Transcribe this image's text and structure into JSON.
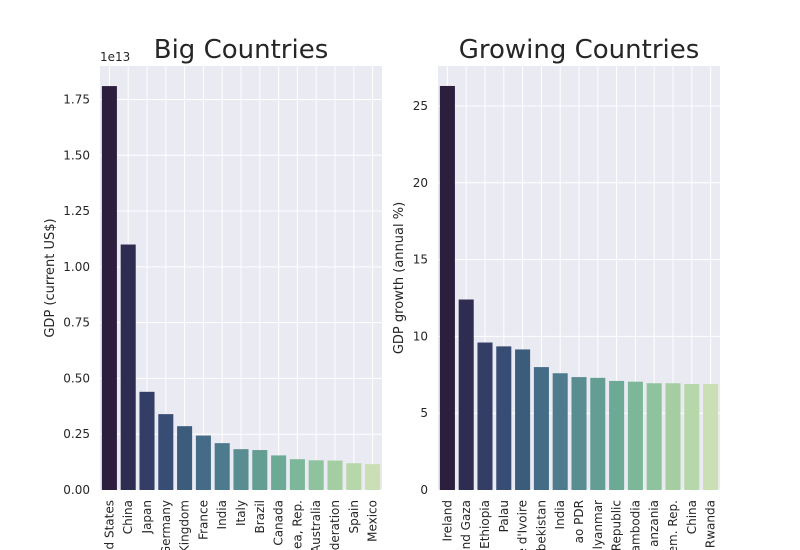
{
  "chart_data": [
    {
      "type": "bar",
      "title": "Big Countries",
      "xlabel": "",
      "ylabel": "GDP (current US$)",
      "offset_text": "1e13",
      "ylim": [
        0,
        1.9
      ],
      "yticks": [
        0.0,
        0.25,
        0.5,
        0.75,
        1.0,
        1.25,
        1.5,
        1.75
      ],
      "ytick_labels": [
        "0.00",
        "0.25",
        "0.50",
        "0.75",
        "1.00",
        "1.25",
        "1.50",
        "1.75"
      ],
      "tick_labels": [
        "d States",
        "China",
        "Japan",
        "Germany",
        "Kingdom",
        "France",
        "India",
        "Italy",
        "Brazil",
        "Canada",
        "ea, Rep.",
        "Australia",
        "ederation",
        "Spain",
        "Mexico"
      ],
      "values": [
        1.81,
        1.1,
        0.44,
        0.34,
        0.286,
        0.244,
        0.21,
        0.183,
        0.179,
        0.155,
        0.138,
        0.133,
        0.132,
        0.12,
        0.116
      ],
      "grid": true,
      "colors": [
        "#2c1e3d",
        "#2f2c52",
        "#343d65",
        "#384d73",
        "#3c5c7c",
        "#446c86",
        "#4d7b8d",
        "#5a8d91",
        "#649d94",
        "#6caa96",
        "#7db79a",
        "#8fc39e",
        "#a4cea2",
        "#b7d7aa",
        "#cbdfb5"
      ]
    },
    {
      "type": "bar",
      "title": "Growing Countries",
      "xlabel": "",
      "ylabel": "GDP growth (annual %)",
      "ylim": [
        0,
        27.6
      ],
      "yticks": [
        0,
        5,
        10,
        15,
        20,
        25
      ],
      "ytick_labels": [
        "0",
        "5",
        "10",
        "15",
        "20",
        "25"
      ],
      "tick_labels": [
        "Ireland",
        "nd Gaza",
        "Ethiopia",
        "Palau",
        "e d'Ivoire",
        "bekistan",
        "India",
        "ao PDR",
        "lyanmar",
        "Republic",
        "ambodia",
        "anzania",
        "em. Rep.",
        "China",
        "Rwanda"
      ],
      "values": [
        26.3,
        12.4,
        9.6,
        9.35,
        9.15,
        8.0,
        7.6,
        7.35,
        7.3,
        7.1,
        7.05,
        6.95,
        6.95,
        6.9,
        6.9
      ],
      "grid": true,
      "colors": [
        "#2c1e3d",
        "#2f2c52",
        "#343d65",
        "#384d73",
        "#3c5c7c",
        "#446c86",
        "#4d7b8d",
        "#5a8d91",
        "#649d94",
        "#6caa96",
        "#7db79a",
        "#8fc39e",
        "#a4cea2",
        "#b7d7aa",
        "#cbdfb5"
      ]
    }
  ],
  "style": {
    "plot_background": "#eaeaf2",
    "grid_color": "#ffffff",
    "text_color": "#262626"
  }
}
